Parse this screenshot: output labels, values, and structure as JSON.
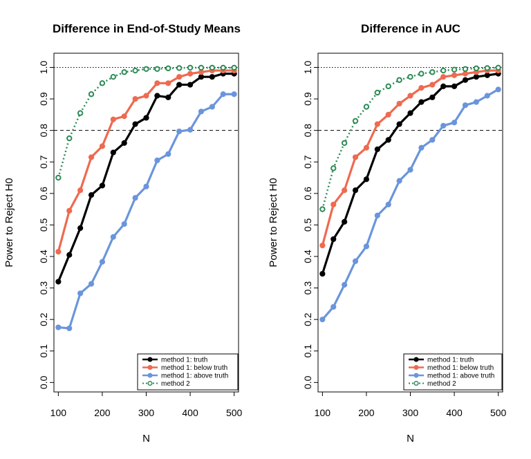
{
  "chart_data": [
    {
      "type": "line",
      "title": "Difference in End-of-Study Means",
      "xlabel": "N",
      "ylabel": "Power to Reject H0",
      "xlim": [
        90,
        510
      ],
      "ylim": [
        -0.03,
        1.045
      ],
      "xticks": [
        100,
        200,
        300,
        400,
        500
      ],
      "xtick_labels": [
        "100",
        "200",
        "300",
        "400",
        "500"
      ],
      "yticks": [
        0,
        0.1,
        0.2,
        0.3,
        0.4,
        0.5,
        0.6,
        0.7,
        0.8,
        0.9,
        1.0
      ],
      "ytick_labels": [
        "0.0",
        "0.1",
        "0.2",
        "0.3",
        "0.4",
        "0.5",
        "0.6",
        "0.7",
        "0.8",
        "0.9",
        "1.0"
      ],
      "reference_lines": [
        {
          "y": 1.0,
          "style": "dotted"
        },
        {
          "y": 0.8,
          "style": "dashed"
        }
      ],
      "legend_position": "bottom-right",
      "x": [
        100,
        125,
        150,
        175,
        200,
        225,
        250,
        275,
        300,
        325,
        350,
        375,
        400,
        425,
        450,
        475,
        500
      ],
      "series": [
        {
          "name": "method 1: truth",
          "color": "#000000",
          "style": "solid",
          "values": [
            0.32,
            0.405,
            0.49,
            0.595,
            0.625,
            0.73,
            0.76,
            0.82,
            0.84,
            0.91,
            0.905,
            0.945,
            0.945,
            0.97,
            0.97,
            0.98,
            0.98
          ]
        },
        {
          "name": "method 1: below truth",
          "color": "#EE6A50",
          "style": "solid",
          "values": [
            0.415,
            0.545,
            0.61,
            0.715,
            0.75,
            0.835,
            0.845,
            0.9,
            0.91,
            0.95,
            0.95,
            0.97,
            0.98,
            0.985,
            0.99,
            0.99,
            0.99
          ]
        },
        {
          "name": "method 1: above truth",
          "color": "#6A95DC",
          "style": "solid",
          "values": [
            0.175,
            0.172,
            0.283,
            0.313,
            0.383,
            0.462,
            0.503,
            0.586,
            0.622,
            0.705,
            0.725,
            0.797,
            0.802,
            0.86,
            0.875,
            0.915,
            0.915
          ]
        },
        {
          "name": "method 2",
          "color": "#2E8B57",
          "style": "dotted",
          "values": [
            0.65,
            0.775,
            0.855,
            0.915,
            0.95,
            0.97,
            0.985,
            0.99,
            0.995,
            0.995,
            0.997,
            0.998,
            0.999,
            0.999,
            0.999,
            0.999,
            0.999
          ]
        }
      ]
    },
    {
      "type": "line",
      "title": "Difference in AUC",
      "xlabel": "N",
      "ylabel": "Power to Reject H0",
      "xlim": [
        90,
        510
      ],
      "ylim": [
        -0.03,
        1.045
      ],
      "xticks": [
        100,
        200,
        300,
        400,
        500
      ],
      "xtick_labels": [
        "100",
        "200",
        "300",
        "400",
        "500"
      ],
      "yticks": [
        0,
        0.1,
        0.2,
        0.3,
        0.4,
        0.5,
        0.6,
        0.7,
        0.8,
        0.9,
        1.0
      ],
      "ytick_labels": [
        "0.0",
        "0.1",
        "0.2",
        "0.3",
        "0.4",
        "0.5",
        "0.6",
        "0.7",
        "0.8",
        "0.9",
        "1.0"
      ],
      "reference_lines": [
        {
          "y": 1.0,
          "style": "dotted"
        },
        {
          "y": 0.8,
          "style": "dashed"
        }
      ],
      "legend_position": "bottom-right",
      "x": [
        100,
        125,
        150,
        175,
        200,
        225,
        250,
        275,
        300,
        325,
        350,
        375,
        400,
        425,
        450,
        475,
        500
      ],
      "series": [
        {
          "name": "method 1: truth",
          "color": "#000000",
          "style": "solid",
          "values": [
            0.345,
            0.455,
            0.51,
            0.61,
            0.645,
            0.74,
            0.77,
            0.82,
            0.855,
            0.89,
            0.905,
            0.94,
            0.94,
            0.96,
            0.97,
            0.975,
            0.98
          ]
        },
        {
          "name": "method 1: below truth",
          "color": "#EE6A50",
          "style": "solid",
          "values": [
            0.435,
            0.565,
            0.61,
            0.715,
            0.745,
            0.82,
            0.85,
            0.885,
            0.91,
            0.935,
            0.945,
            0.97,
            0.975,
            0.98,
            0.985,
            0.99,
            0.99
          ]
        },
        {
          "name": "method 1: above truth",
          "color": "#6A95DC",
          "style": "solid",
          "values": [
            0.2,
            0.24,
            0.31,
            0.385,
            0.432,
            0.53,
            0.565,
            0.64,
            0.675,
            0.745,
            0.77,
            0.815,
            0.825,
            0.88,
            0.89,
            0.91,
            0.93
          ]
        },
        {
          "name": "method 2",
          "color": "#2E8B57",
          "style": "dotted",
          "values": [
            0.55,
            0.68,
            0.76,
            0.83,
            0.875,
            0.92,
            0.94,
            0.96,
            0.97,
            0.98,
            0.985,
            0.99,
            0.993,
            0.995,
            0.997,
            0.998,
            0.999
          ]
        }
      ]
    }
  ]
}
